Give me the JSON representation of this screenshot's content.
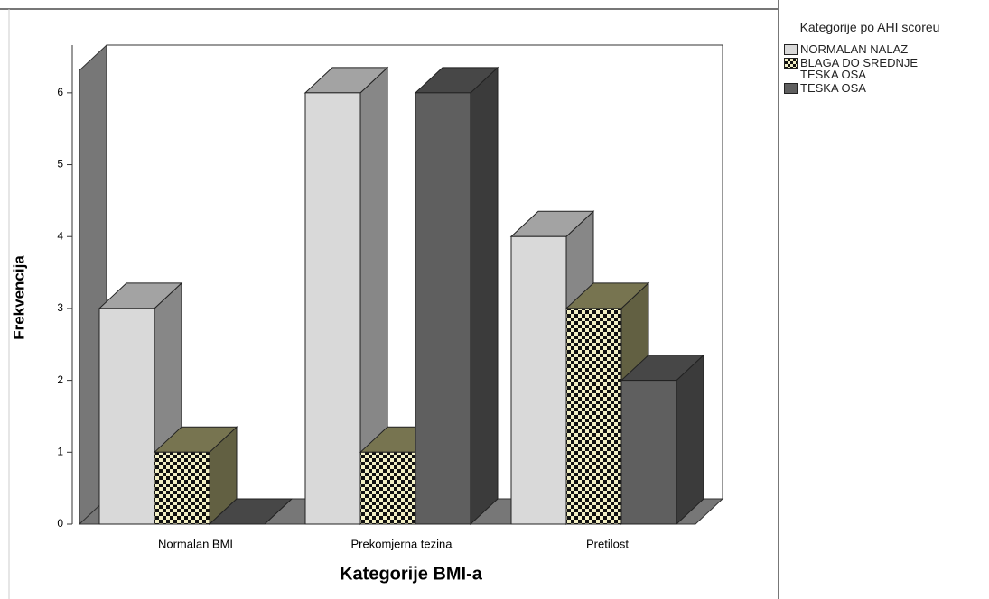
{
  "chart_data": {
    "type": "bar3d",
    "x_label": "Kategorije BMI-a",
    "y_label": "Frekvencija",
    "legend_title": "Kategorije po AHI scoreu",
    "categories": [
      "Normalan BMI",
      "Prekomjerna tezina",
      "Pretilost"
    ],
    "series": [
      {
        "name": "NORMALAN NALAZ",
        "color": "#d9d9d9",
        "values": [
          3,
          6,
          4
        ]
      },
      {
        "name": "BLAGA DO SREDNJE TESKA OSA",
        "color": "#f2efc4",
        "pattern": "checker",
        "values": [
          1,
          1,
          3
        ]
      },
      {
        "name": "TESKA OSA",
        "color": "#5f5f5f",
        "values": [
          0,
          6,
          2
        ]
      }
    ],
    "ylim": [
      0,
      6.5
    ],
    "yticks": [
      0,
      1,
      2,
      3,
      4,
      5,
      6
    ],
    "legend": "right"
  }
}
